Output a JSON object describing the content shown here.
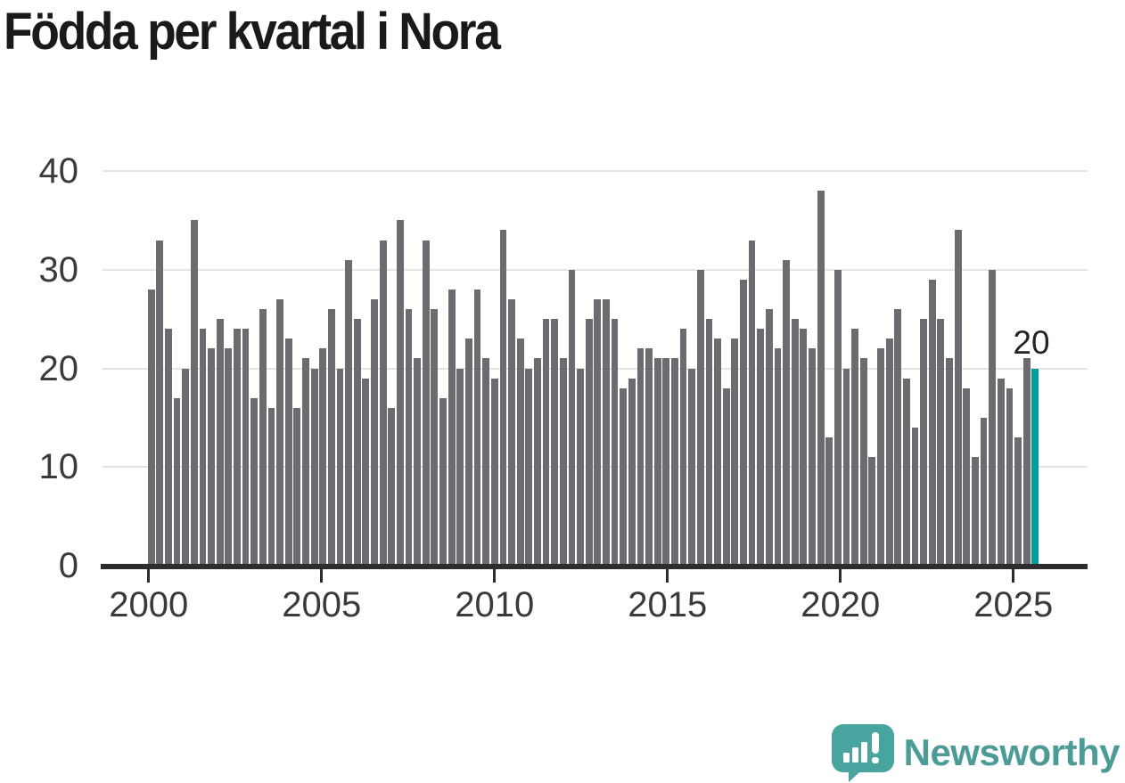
{
  "title": "Födda per kvartal i Nora",
  "annotation": {
    "last_value_label": "20"
  },
  "branding": {
    "name": "Newsworthy",
    "icon": "newsworthy-speech-bubble-chart-icon"
  },
  "colors": {
    "bar": "#6b6b70",
    "highlight": "#009e99",
    "grid": "#e4e4e4",
    "axis": "#2d2d30",
    "tick_label": "#3a3a3a",
    "title": "#1a1a1a",
    "annotation": "#242424",
    "brand_icon": "#47a49e",
    "brand_text": "#4d9b97"
  },
  "chart_data": {
    "type": "bar",
    "title": "Födda per kvartal i Nora",
    "xlabel": "",
    "ylabel": "",
    "ylim": [
      0,
      40
    ],
    "y_ticks": [
      0,
      10,
      20,
      30,
      40
    ],
    "x_tick_labels": [
      "2000",
      "2005",
      "2010",
      "2015",
      "2020",
      "2025"
    ],
    "grid": "horizontal",
    "legend_position": "none",
    "highlight_last_bar": true,
    "last_bar_label": "20",
    "values": [
      28,
      33,
      24,
      17,
      20,
      35,
      24,
      22,
      25,
      22,
      24,
      24,
      17,
      26,
      16,
      27,
      23,
      16,
      21,
      20,
      22,
      26,
      20,
      31,
      25,
      19,
      27,
      33,
      16,
      35,
      26,
      21,
      33,
      26,
      17,
      28,
      20,
      23,
      28,
      21,
      19,
      34,
      27,
      23,
      20,
      21,
      25,
      25,
      21,
      30,
      20,
      25,
      27,
      27,
      25,
      18,
      19,
      22,
      22,
      21,
      21,
      21,
      24,
      20,
      30,
      25,
      23,
      18,
      23,
      29,
      33,
      24,
      26,
      22,
      31,
      25,
      24,
      22,
      38,
      13,
      30,
      20,
      24,
      21,
      11,
      22,
      23,
      26,
      19,
      14,
      25,
      29,
      25,
      21,
      34,
      18,
      11,
      15,
      30,
      19,
      18,
      13,
      21,
      20
    ]
  }
}
